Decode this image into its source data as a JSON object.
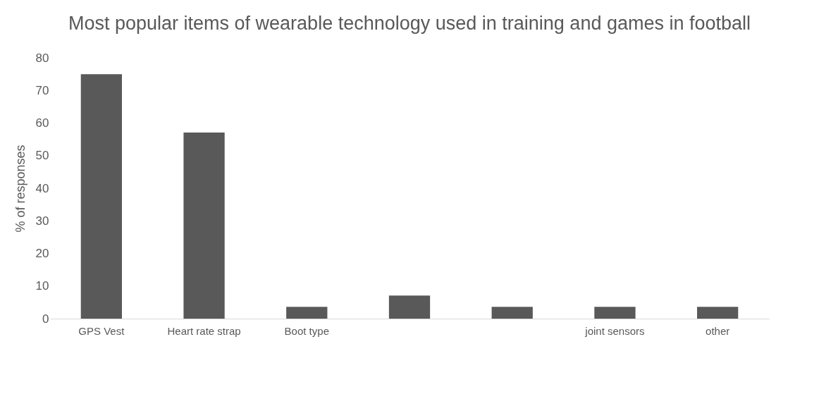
{
  "chart_data": {
    "type": "bar",
    "title": "Most popular items of wearable technology used in training and games in football",
    "ylabel": "% of responses",
    "categories": [
      "GPS Vest",
      "Heart rate strap",
      "Boot type",
      null,
      null,
      "joint sensors",
      "other"
    ],
    "values": [
      75,
      57.1,
      3.6,
      7.1,
      3.6,
      3.6,
      3.6
    ],
    "color": "#595959",
    "ylim": [
      0,
      80
    ],
    "yticks": [
      0,
      10,
      20,
      30,
      40,
      50,
      60,
      70,
      80
    ],
    "grid": false
  }
}
